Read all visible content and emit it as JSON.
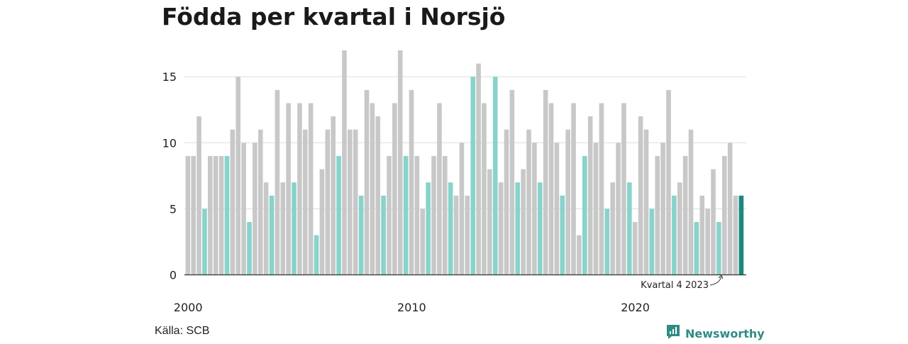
{
  "chart_data": {
    "type": "bar",
    "title": "Födda per kvartal i Norsjö",
    "start_year": 2000,
    "x_ticks": [
      "2000",
      "2010",
      "2020"
    ],
    "y_ticks": [
      0,
      5,
      10,
      15
    ],
    "ylim": [
      0,
      17
    ],
    "grid": true,
    "values": [
      9,
      9,
      12,
      5,
      9,
      9,
      9,
      9,
      11,
      15,
      10,
      4,
      10,
      11,
      7,
      6,
      14,
      7,
      13,
      7,
      13,
      11,
      13,
      3,
      8,
      11,
      12,
      9,
      17,
      11,
      11,
      6,
      14,
      13,
      12,
      6,
      9,
      13,
      17,
      9,
      14,
      9,
      5,
      7,
      9,
      13,
      9,
      7,
      6,
      10,
      6,
      15,
      16,
      13,
      8,
      15,
      7,
      11,
      14,
      7,
      8,
      11,
      10,
      7,
      14,
      13,
      10,
      6,
      11,
      13,
      3,
      9,
      12,
      10,
      13,
      5,
      7,
      10,
      13,
      7,
      4,
      12,
      11,
      5,
      9,
      10,
      14,
      6,
      7,
      9,
      11,
      4,
      6,
      5,
      8,
      4,
      9,
      10,
      6,
      6
    ],
    "annotation": "Kvartal 4 2023"
  },
  "colors": {
    "bar": "#c8c8c8",
    "q1_bar": "#88d3cb",
    "highlight_bar": "#1a8a80",
    "grid": "#dddddd",
    "axis": "#333333"
  },
  "footer": {
    "source": "Källa: SCB",
    "brand": "Newsworthy",
    "brand_icon": "newsworthy-logo-icon"
  }
}
